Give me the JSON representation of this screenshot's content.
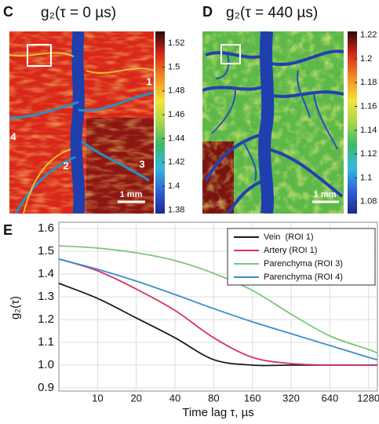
{
  "chart_data": [
    {
      "type": "image",
      "panel": "C",
      "title": "g₂(τ = 0 µs)",
      "clim": [
        1.377,
        1.53
      ],
      "cticks": [
        1.38,
        1.4,
        1.42,
        1.44,
        1.46,
        1.48,
        1.5,
        1.52
      ],
      "roi_labels": [
        "1",
        "2",
        "3",
        "4"
      ],
      "scale_bar": "1 mm"
    },
    {
      "type": "image",
      "panel": "D",
      "title": "g₂(τ = 440 µs)",
      "clim": [
        1.07,
        1.223
      ],
      "cticks": [
        1.08,
        1.1,
        1.12,
        1.14,
        1.16,
        1.18,
        1.2,
        1.22
      ],
      "scale_bar": "1 mm"
    },
    {
      "type": "line",
      "panel": "E",
      "x_label": "Time lag τ, µs",
      "y_label": "g₂(τ)",
      "x": [
        5,
        10,
        20,
        40,
        80,
        160,
        320,
        640,
        1280,
        1500
      ],
      "log_x": true,
      "grid": true,
      "xlim": [
        5,
        1500
      ],
      "xticks": [
        10,
        20,
        40,
        80,
        160,
        320,
        640,
        1280
      ],
      "ylim": [
        0.9,
        1.6
      ],
      "yticks": [
        0.9,
        {
          "value": 1,
          "label": "1.0"
        },
        1.1,
        1.2,
        1.3,
        1.4,
        1.5,
        1.6
      ],
      "legend": "upper right",
      "series": [
        {
          "name": "Vein  (ROI 1)",
          "color": "#1a1a1a",
          "values": [
            1.359,
            1.293,
            1.207,
            1.12,
            1.024,
            1.0,
            1.0,
            1.0,
            1.0,
            1.0
          ]
        },
        {
          "name": "Artery (ROI 1)",
          "color": "#d6336c",
          "values": [
            1.466,
            1.414,
            1.334,
            1.24,
            1.12,
            1.034,
            1.007,
            1.0,
            1.0,
            1.0
          ]
        },
        {
          "name": "Parenchyma (ROI 3)",
          "color": "#7cc87a",
          "values": [
            1.524,
            1.514,
            1.493,
            1.459,
            1.403,
            1.328,
            1.224,
            1.128,
            1.069,
            1.052
          ]
        },
        {
          "name": "Parenchyma (ROI 4)",
          "color": "#3a8fc4",
          "values": [
            1.466,
            1.421,
            1.369,
            1.31,
            1.248,
            1.19,
            1.138,
            1.086,
            1.034,
            1.024
          ]
        }
      ]
    }
  ]
}
